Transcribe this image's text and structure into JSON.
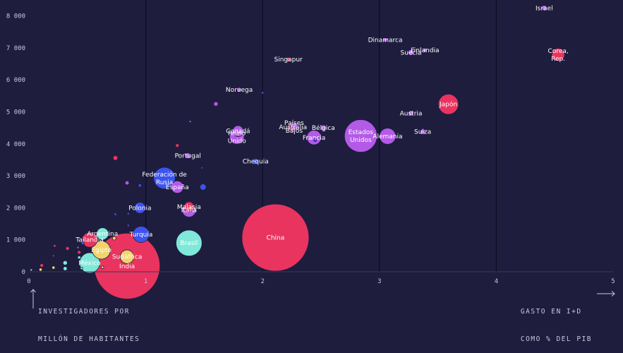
{
  "chart_data": {
    "type": "scatter",
    "title": "",
    "xlabel": "GASTO EN I+D COMO % DEL PIB",
    "xlabel_lines": [
      "GASTO EN I+D",
      "COMO % DEL PIB"
    ],
    "ylabel": "INVESTIGADORES POR MILLÓN DE HABITANTES",
    "ylabel_lines": [
      "INVESTIGADORES POR",
      "MILLÓN DE HABITANTES"
    ],
    "xlim": [
      0,
      5
    ],
    "ylim": [
      0,
      8500
    ],
    "x_ticks": [
      0,
      1,
      2,
      3,
      4,
      5
    ],
    "x_tick_labels": [
      "0",
      "1",
      "2",
      "3",
      "4",
      "5"
    ],
    "y_ticks": [
      0,
      1000,
      2000,
      3000,
      4000,
      5000,
      6000,
      7000,
      8000
    ],
    "y_tick_labels": [
      "0",
      "1 000",
      "2 000",
      "3 000",
      "4 000",
      "5 000",
      "6 000",
      "7 000",
      "8 000"
    ],
    "grid": "vertical",
    "colors": {
      "pink": "#e8345f",
      "purple": "#b45ae8",
      "blue": "#3d54f0",
      "teal": "#7fe8d8",
      "yellow": "#f2d26a",
      "background": "#1e1d3e"
    },
    "points": [
      {
        "label": "China",
        "x": 2.11,
        "y": 1070,
        "size": 1400,
        "color": "pink"
      },
      {
        "label": "Estados Unidos",
        "x": 2.84,
        "y": 4250,
        "size": 330,
        "color": "purple"
      },
      {
        "label": "Japón",
        "x": 3.59,
        "y": 5240,
        "size": 127,
        "color": "pink"
      },
      {
        "label": "Alemania",
        "x": 3.07,
        "y": 4240,
        "size": 82,
        "color": "purple"
      },
      {
        "label": "India",
        "x": 0.84,
        "y": 180,
        "size": 1350,
        "color": "pink"
      },
      {
        "label": "Federación de Rusia",
        "x": 1.16,
        "y": 2930,
        "size": 145,
        "color": "blue"
      },
      {
        "label": "Brasil",
        "x": 1.37,
        "y": 900,
        "size": 210,
        "color": "teal"
      },
      {
        "label": "Francia",
        "x": 2.44,
        "y": 4200,
        "size": 66,
        "color": "purple"
      },
      {
        "label": "Corea, Rep.",
        "x": 4.53,
        "y": 6790,
        "size": 51,
        "color": "pink"
      },
      {
        "label": "Canadá",
        "x": 1.79,
        "y": 4400,
        "size": 37,
        "color": "purple"
      },
      {
        "label": "Reino Unido",
        "x": 1.78,
        "y": 4220,
        "size": 66,
        "color": "purple"
      },
      {
        "label": "España",
        "x": 1.27,
        "y": 2650,
        "size": 47,
        "color": "purple"
      },
      {
        "label": "Polonia",
        "x": 0.95,
        "y": 2000,
        "size": 38,
        "color": "blue"
      },
      {
        "label": "Turquía",
        "x": 0.96,
        "y": 1170,
        "size": 82,
        "color": "blue"
      },
      {
        "label": "Malasia",
        "x": 1.37,
        "y": 2030,
        "size": 32,
        "color": "pink"
      },
      {
        "label": "Italia",
        "x": 1.37,
        "y": 1930,
        "size": 60,
        "color": "purple"
      },
      {
        "label": "Australia",
        "x": 2.26,
        "y": 4530,
        "size": 25,
        "color": "pink"
      },
      {
        "label": "Países Bajos",
        "x": 2.27,
        "y": 4540,
        "size": 17,
        "color": "purple"
      },
      {
        "label": "Bélgica",
        "x": 2.52,
        "y": 4500,
        "size": 11,
        "color": "purple"
      },
      {
        "label": "Suecia",
        "x": 3.27,
        "y": 6860,
        "size": 10,
        "color": "purple"
      },
      {
        "label": "Finlandia",
        "x": 3.39,
        "y": 6930,
        "size": 5.5,
        "color": "purple"
      },
      {
        "label": "Dinamarca",
        "x": 3.05,
        "y": 7250,
        "size": 5.8,
        "color": "purple"
      },
      {
        "label": "Singapur",
        "x": 2.22,
        "y": 6640,
        "size": 5.6,
        "color": "pink"
      },
      {
        "label": "Israel",
        "x": 4.41,
        "y": 8250,
        "size": 8.7,
        "color": "purple"
      },
      {
        "label": "Noruega",
        "x": 1.8,
        "y": 5700,
        "size": 5.3,
        "color": "purple"
      },
      {
        "label": "Austria",
        "x": 3.27,
        "y": 4960,
        "size": 8.9,
        "color": "purple"
      },
      {
        "label": "Suiza",
        "x": 3.37,
        "y": 4380,
        "size": 8.5,
        "color": "purple"
      },
      {
        "label": "Chequia",
        "x": 1.94,
        "y": 3450,
        "size": 10.6,
        "color": "blue"
      },
      {
        "label": "Portugal",
        "x": 1.36,
        "y": 3630,
        "size": 10.3,
        "color": "purple"
      },
      {
        "label": "Argentina",
        "x": 0.63,
        "y": 1190,
        "size": 45,
        "color": "teal"
      },
      {
        "label": "Tailandia",
        "x": 0.52,
        "y": 1000,
        "size": 70,
        "color": "pink"
      },
      {
        "label": "Egipto",
        "x": 0.62,
        "y": 680,
        "size": 102,
        "color": "yellow"
      },
      {
        "label": "Sudáfrica",
        "x": 0.84,
        "y": 470,
        "size": 58,
        "color": "yellow"
      },
      {
        "label": "México",
        "x": 0.52,
        "y": 280,
        "size": 128,
        "color": "teal"
      },
      {
        "label": "",
        "x": 1.49,
        "y": 2650,
        "size": 12,
        "color": "blue"
      },
      {
        "label": "",
        "x": 1.6,
        "y": 5250,
        "size": 6,
        "color": "purple"
      },
      {
        "label": "",
        "x": 1.27,
        "y": 3950,
        "size": 4,
        "color": "pink"
      },
      {
        "label": "",
        "x": 0.74,
        "y": 3560,
        "size": 7,
        "color": "pink"
      },
      {
        "label": "",
        "x": 0.84,
        "y": 2780,
        "size": 5,
        "color": "purple"
      },
      {
        "label": "",
        "x": 0.95,
        "y": 2700,
        "size": 3,
        "color": "blue"
      },
      {
        "label": "",
        "x": 2.45,
        "y": 4120,
        "size": 3,
        "color": "blue"
      },
      {
        "label": "",
        "x": 1.38,
        "y": 4700,
        "size": 1.5,
        "color": "purple"
      },
      {
        "label": "",
        "x": 1.48,
        "y": 3250,
        "size": 1,
        "color": "blue"
      },
      {
        "label": "",
        "x": 2.0,
        "y": 5600,
        "size": 0.6,
        "color": "purple"
      },
      {
        "label": "",
        "x": 0.74,
        "y": 1800,
        "size": 2,
        "color": "blue"
      },
      {
        "label": "",
        "x": 0.85,
        "y": 1820,
        "size": 1.5,
        "color": "blue"
      },
      {
        "label": "",
        "x": 0.85,
        "y": 1450,
        "size": 1.5,
        "color": "blue"
      },
      {
        "label": "",
        "x": 0.73,
        "y": 1050,
        "size": 4,
        "color": "yellow"
      },
      {
        "label": "",
        "x": 0.46,
        "y": 900,
        "size": 3,
        "color": "blue"
      },
      {
        "label": "",
        "x": 0.33,
        "y": 730,
        "size": 4,
        "color": "pink"
      },
      {
        "label": "",
        "x": 0.22,
        "y": 810,
        "size": 2,
        "color": "pink"
      },
      {
        "label": "",
        "x": 0.42,
        "y": 760,
        "size": 1.5,
        "color": "purple"
      },
      {
        "label": "",
        "x": 0.43,
        "y": 610,
        "size": 4,
        "color": "pink"
      },
      {
        "label": "",
        "x": 0.21,
        "y": 500,
        "size": 1,
        "color": "pink"
      },
      {
        "label": "",
        "x": 0.43,
        "y": 450,
        "size": 3,
        "color": "teal"
      },
      {
        "label": "",
        "x": 0.31,
        "y": 280,
        "size": 6,
        "color": "teal"
      },
      {
        "label": "",
        "x": 0.31,
        "y": 100,
        "size": 5,
        "color": "teal"
      },
      {
        "label": "",
        "x": 0.21,
        "y": 130,
        "size": 3,
        "color": "yellow"
      },
      {
        "label": "",
        "x": 0.11,
        "y": 200,
        "size": 4,
        "color": "pink"
      },
      {
        "label": "",
        "x": 0.1,
        "y": 70,
        "size": 3,
        "color": "yellow"
      },
      {
        "label": "",
        "x": 0.02,
        "y": 60,
        "size": 1.5,
        "color": "teal"
      },
      {
        "label": "",
        "x": 0.63,
        "y": 140,
        "size": 2,
        "color": "yellow"
      },
      {
        "label": "",
        "x": 0.45,
        "y": 110,
        "size": 2,
        "color": "teal"
      }
    ]
  }
}
